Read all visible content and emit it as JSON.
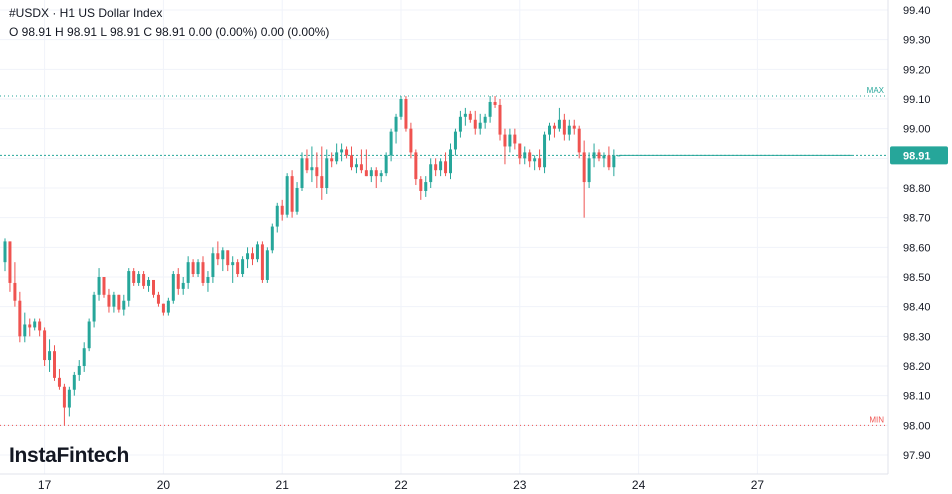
{
  "header": {
    "line1": "#USDX · H1 US Dollar Index",
    "line2": "O 98.91 H 98.91 L 98.91 C 98.91 0.00 (0.00%) 0.00 (0.00%)"
  },
  "brand": "InstaFintech",
  "colors": {
    "up": "#26a69a",
    "down": "#ef5350",
    "grid": "#f0f3fa",
    "current": "#26a69a"
  },
  "chart_data": {
    "type": "candlestick",
    "y_ticks": [
      "99.40",
      "99.30",
      "99.20",
      "99.10",
      "99.00",
      "98.90",
      "98.80",
      "98.70",
      "98.60",
      "98.50",
      "98.40",
      "98.30",
      "98.20",
      "98.10",
      "98.00",
      "97.90"
    ],
    "ylim": [
      97.87,
      99.46
    ],
    "x_ticks": [
      {
        "label": "17",
        "index": 8
      },
      {
        "label": "20",
        "index": 32
      },
      {
        "label": "21",
        "index": 56
      },
      {
        "label": "22",
        "index": 80
      },
      {
        "label": "23",
        "index": 104
      },
      {
        "label": "24",
        "index": 128
      },
      {
        "label": "27",
        "index": 152
      }
    ],
    "max_line": {
      "label": "MAX",
      "value": 99.11
    },
    "min_line": {
      "label": "MIN",
      "value": 98.0
    },
    "current_price": {
      "label": "98.91",
      "value": 98.91
    },
    "candles": [
      [
        98.55,
        98.63,
        98.52,
        98.62
      ],
      [
        98.62,
        98.62,
        98.45,
        98.48
      ],
      [
        98.48,
        98.55,
        98.4,
        98.42
      ],
      [
        98.42,
        98.45,
        98.28,
        98.3
      ],
      [
        98.3,
        98.38,
        98.28,
        98.34
      ],
      [
        98.34,
        98.36,
        98.3,
        98.33
      ],
      [
        98.33,
        98.36,
        98.32,
        98.35
      ],
      [
        98.35,
        98.36,
        98.3,
        98.32
      ],
      [
        98.32,
        98.33,
        98.2,
        98.22
      ],
      [
        98.22,
        98.29,
        98.18,
        98.25
      ],
      [
        98.25,
        98.27,
        98.15,
        98.16
      ],
      [
        98.16,
        98.19,
        98.12,
        98.13
      ],
      [
        98.13,
        98.14,
        98.0,
        98.06
      ],
      [
        98.06,
        98.13,
        98.03,
        98.12
      ],
      [
        98.12,
        98.18,
        98.1,
        98.17
      ],
      [
        98.17,
        98.22,
        98.15,
        98.2
      ],
      [
        98.2,
        98.28,
        98.18,
        98.26
      ],
      [
        98.26,
        98.36,
        98.25,
        98.35
      ],
      [
        98.35,
        98.45,
        98.33,
        98.44
      ],
      [
        98.44,
        98.53,
        98.42,
        98.5
      ],
      [
        98.5,
        98.5,
        98.43,
        98.44
      ],
      [
        98.44,
        98.46,
        98.38,
        98.4
      ],
      [
        98.4,
        98.45,
        98.38,
        98.44
      ],
      [
        98.44,
        98.44,
        98.38,
        98.39
      ],
      [
        98.39,
        98.44,
        98.37,
        98.42
      ],
      [
        98.42,
        98.53,
        98.4,
        98.52
      ],
      [
        98.52,
        98.53,
        98.47,
        98.48
      ],
      [
        98.48,
        98.52,
        98.47,
        98.51
      ],
      [
        98.51,
        98.52,
        98.46,
        98.47
      ],
      [
        98.47,
        98.5,
        98.45,
        98.49
      ],
      [
        98.49,
        98.49,
        98.43,
        98.44
      ],
      [
        98.44,
        98.45,
        98.4,
        98.41
      ],
      [
        98.41,
        98.41,
        98.37,
        98.38
      ],
      [
        98.38,
        98.43,
        98.37,
        98.42
      ],
      [
        98.42,
        98.52,
        98.41,
        98.51
      ],
      [
        98.51,
        98.53,
        98.44,
        98.46
      ],
      [
        98.46,
        98.5,
        98.44,
        98.48
      ],
      [
        98.48,
        98.57,
        98.46,
        98.55
      ],
      [
        98.55,
        98.56,
        98.5,
        98.51
      ],
      [
        98.51,
        98.56,
        98.5,
        98.55
      ],
      [
        98.55,
        98.57,
        98.47,
        98.48
      ],
      [
        98.48,
        98.52,
        98.45,
        98.5
      ],
      [
        98.5,
        98.6,
        98.48,
        98.58
      ],
      [
        98.58,
        98.62,
        98.54,
        98.56
      ],
      [
        98.56,
        98.6,
        98.52,
        98.59
      ],
      [
        98.59,
        98.59,
        98.52,
        98.54
      ],
      [
        98.54,
        98.57,
        98.48,
        98.55
      ],
      [
        98.55,
        98.56,
        98.5,
        98.51
      ],
      [
        98.51,
        98.57,
        98.5,
        98.56
      ],
      [
        98.56,
        98.6,
        98.53,
        98.58
      ],
      [
        98.58,
        98.6,
        98.54,
        98.56
      ],
      [
        98.56,
        98.62,
        98.55,
        98.61
      ],
      [
        98.61,
        98.62,
        98.48,
        98.49
      ],
      [
        98.49,
        98.6,
        98.48,
        98.59
      ],
      [
        98.59,
        98.68,
        98.58,
        98.67
      ],
      [
        98.67,
        98.75,
        98.65,
        98.74
      ],
      [
        98.74,
        98.76,
        98.69,
        98.71
      ],
      [
        98.71,
        98.85,
        98.7,
        98.84
      ],
      [
        98.84,
        98.86,
        98.7,
        98.72
      ],
      [
        98.72,
        98.82,
        98.71,
        98.8
      ],
      [
        98.8,
        98.92,
        98.79,
        98.9
      ],
      [
        98.9,
        98.93,
        98.85,
        98.86
      ],
      [
        98.86,
        98.94,
        98.82,
        98.87
      ],
      [
        98.87,
        98.92,
        98.8,
        98.84
      ],
      [
        98.84,
        98.94,
        98.76,
        98.8
      ],
      [
        98.8,
        98.93,
        98.78,
        98.9
      ],
      [
        98.9,
        98.92,
        98.87,
        98.89
      ],
      [
        98.89,
        98.95,
        98.88,
        98.92
      ],
      [
        98.92,
        98.95,
        98.89,
        98.93
      ],
      [
        98.93,
        98.94,
        98.9,
        98.91
      ],
      [
        98.91,
        98.94,
        98.86,
        98.87
      ],
      [
        98.87,
        98.9,
        98.85,
        98.88
      ],
      [
        98.88,
        98.93,
        98.85,
        98.86
      ],
      [
        98.86,
        98.93,
        98.84,
        98.84
      ],
      [
        98.84,
        98.87,
        98.82,
        98.86
      ],
      [
        98.86,
        98.87,
        98.8,
        98.84
      ],
      [
        98.84,
        98.86,
        98.82,
        98.85
      ],
      [
        98.85,
        98.92,
        98.84,
        98.91
      ],
      [
        98.91,
        99.0,
        98.89,
        98.99
      ],
      [
        98.99,
        99.05,
        98.95,
        99.04
      ],
      [
        99.04,
        99.11,
        99.03,
        99.1
      ],
      [
        99.1,
        99.11,
        98.99,
        99.0
      ],
      [
        99.0,
        99.02,
        98.9,
        98.92
      ],
      [
        98.92,
        98.93,
        98.81,
        98.83
      ],
      [
        98.83,
        98.84,
        98.76,
        98.79
      ],
      [
        98.79,
        98.84,
        98.77,
        98.82
      ],
      [
        98.82,
        98.9,
        98.8,
        98.88
      ],
      [
        98.88,
        98.9,
        98.84,
        98.86
      ],
      [
        98.86,
        98.9,
        98.84,
        98.89
      ],
      [
        98.89,
        98.92,
        98.84,
        98.85
      ],
      [
        98.85,
        98.95,
        98.83,
        98.93
      ],
      [
        98.93,
        99.0,
        98.91,
        98.99
      ],
      [
        98.99,
        99.06,
        98.97,
        99.04
      ],
      [
        99.04,
        99.07,
        99.01,
        99.05
      ],
      [
        99.05,
        99.06,
        99.02,
        99.03
      ],
      [
        99.03,
        99.06,
        98.98,
        99.0
      ],
      [
        99.0,
        99.05,
        98.98,
        99.02
      ],
      [
        99.02,
        99.05,
        99.0,
        99.04
      ],
      [
        99.04,
        99.11,
        99.02,
        99.09
      ],
      [
        99.09,
        99.11,
        99.07,
        99.08
      ],
      [
        99.08,
        99.1,
        98.96,
        98.98
      ],
      [
        98.98,
        99.0,
        98.88,
        98.94
      ],
      [
        98.94,
        99.0,
        98.92,
        98.98
      ],
      [
        98.98,
        99.0,
        98.93,
        98.95
      ],
      [
        98.95,
        98.95,
        98.88,
        98.9
      ],
      [
        98.9,
        98.94,
        98.88,
        98.92
      ],
      [
        98.92,
        98.93,
        98.87,
        98.89
      ],
      [
        98.89,
        98.91,
        98.86,
        98.9
      ],
      [
        98.9,
        98.93,
        98.86,
        98.87
      ],
      [
        98.87,
        98.99,
        98.85,
        98.98
      ],
      [
        98.98,
        99.02,
        98.96,
        99.01
      ],
      [
        99.01,
        99.02,
        98.97,
        99.0
      ],
      [
        99.0,
        99.07,
        98.99,
        99.03
      ],
      [
        99.03,
        99.05,
        98.96,
        98.98
      ],
      [
        98.98,
        99.03,
        98.96,
        99.01
      ],
      [
        99.01,
        99.03,
        98.98,
        99.0
      ],
      [
        99.0,
        99.01,
        98.9,
        98.92
      ],
      [
        98.92,
        98.96,
        98.7,
        98.82
      ],
      [
        98.82,
        98.92,
        98.8,
        98.9
      ],
      [
        98.9,
        98.95,
        98.87,
        98.92
      ],
      [
        98.92,
        98.93,
        98.89,
        98.9
      ],
      [
        98.9,
        98.92,
        98.87,
        98.91
      ],
      [
        98.91,
        98.94,
        98.86,
        98.87
      ],
      [
        98.87,
        98.93,
        98.84,
        98.91
      ],
      [
        98.91,
        98.91,
        98.91,
        98.91
      ]
    ]
  }
}
